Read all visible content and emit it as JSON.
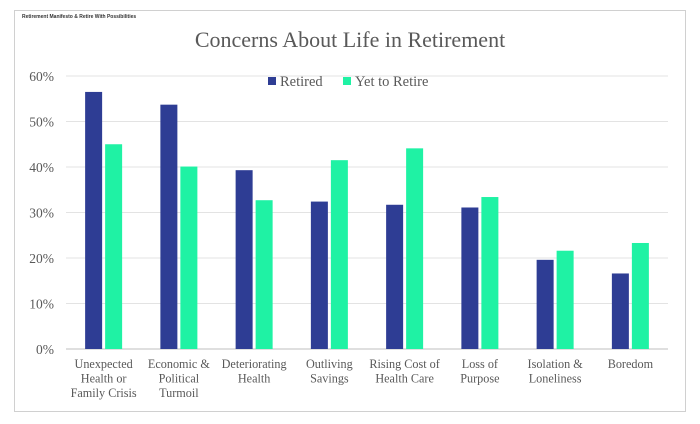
{
  "watermark": "Retirement Manifesto & Retire With Possibilities",
  "chart_data": {
    "type": "bar",
    "title": "Concerns About Life in Retirement",
    "categories": [
      [
        "Unexpected",
        "Health or",
        "Family Crisis"
      ],
      [
        "Economic &",
        "Political",
        "Turmoil"
      ],
      [
        "Deteriorating",
        "Health"
      ],
      [
        "Outliving",
        "Savings"
      ],
      [
        "Rising Cost of",
        "Health Care"
      ],
      [
        "Loss of",
        "Purpose"
      ],
      [
        "Isolation &",
        "Loneliness"
      ],
      [
        "Boredom"
      ]
    ],
    "series": [
      {
        "name": "Retired",
        "color": "#2E3D94",
        "values": [
          56.5,
          53.7,
          39.3,
          32.4,
          31.7,
          31.1,
          19.6,
          16.6
        ]
      },
      {
        "name": "Yet to Retire",
        "color": "#1FF2A4",
        "values": [
          45.0,
          40.1,
          32.7,
          41.5,
          44.1,
          33.4,
          21.6,
          23.3
        ]
      }
    ],
    "ylim": [
      0,
      60
    ],
    "yticks": [
      "0%",
      "10%",
      "20%",
      "30%",
      "40%",
      "50%",
      "60%"
    ],
    "grid": true,
    "legend": "top-right"
  }
}
